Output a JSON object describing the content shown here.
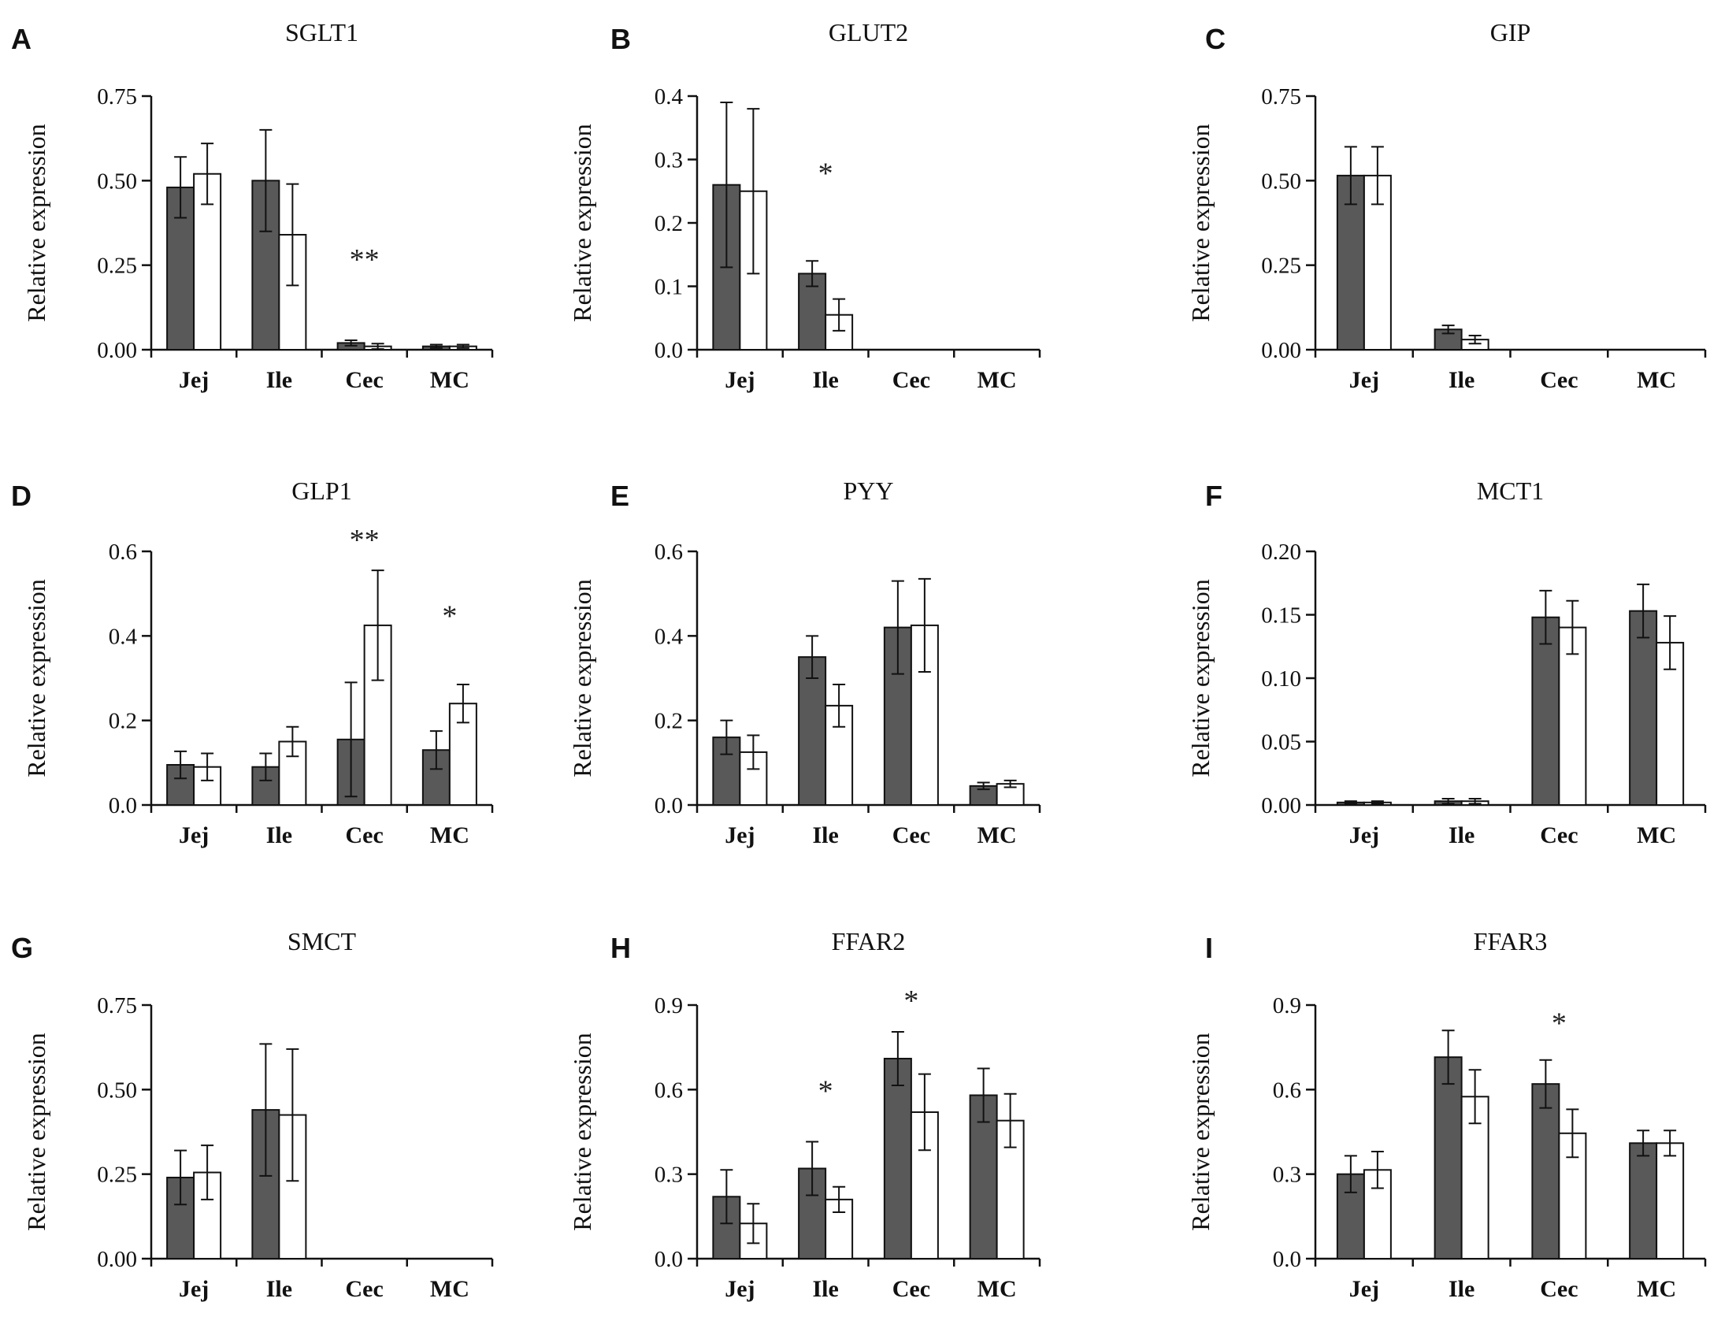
{
  "colors": {
    "series_dark": "#595959",
    "series_light": "#ffffff",
    "stroke": "#111111"
  },
  "chart_data": [
    {
      "panel": "A",
      "title": "SGLT1",
      "type": "bar",
      "ylabel": "Relative expression",
      "categories": [
        "Jej",
        "Ile",
        "Cec",
        "MC"
      ],
      "ylim": [
        0,
        0.75
      ],
      "yticks": [
        "0.00",
        "0.25",
        "0.50",
        "0.75"
      ],
      "series": [
        {
          "name": "dark",
          "values": [
            0.48,
            0.5,
            0.02,
            0.01
          ],
          "errors": [
            0.09,
            0.15,
            0.008,
            0.005
          ]
        },
        {
          "name": "white",
          "values": [
            0.52,
            0.34,
            0.01,
            0.01
          ],
          "errors": [
            0.09,
            0.15,
            0.008,
            0.005
          ]
        }
      ],
      "annotations": [
        {
          "category": 2,
          "text": "**",
          "y": 0.27
        }
      ]
    },
    {
      "panel": "B",
      "title": "GLUT2",
      "type": "bar",
      "ylabel": "Relative expression",
      "categories": [
        "Jej",
        "Ile",
        "Cec",
        "MC"
      ],
      "ylim": [
        0,
        0.4
      ],
      "yticks": [
        "0.0",
        "0.1",
        "0.2",
        "0.3",
        "0.4"
      ],
      "series": [
        {
          "name": "dark",
          "values": [
            0.26,
            0.12,
            0,
            0
          ],
          "errors": [
            0.13,
            0.02,
            0,
            0
          ]
        },
        {
          "name": "white",
          "values": [
            0.25,
            0.055,
            0,
            0
          ],
          "errors": [
            0.13,
            0.025,
            0,
            0
          ]
        }
      ],
      "annotations": [
        {
          "category": 1,
          "text": "*",
          "y": 0.28
        }
      ]
    },
    {
      "panel": "C",
      "title": "GIP",
      "type": "bar",
      "ylabel": "Relative expression",
      "categories": [
        "Jej",
        "Ile",
        "Cec",
        "MC"
      ],
      "ylim": [
        0,
        0.75
      ],
      "yticks": [
        "0.00",
        "0.25",
        "0.50",
        "0.75"
      ],
      "series": [
        {
          "name": "dark",
          "values": [
            0.515,
            0.06,
            0,
            0
          ],
          "errors": [
            0.085,
            0.012,
            0,
            0
          ]
        },
        {
          "name": "white",
          "values": [
            0.515,
            0.03,
            0,
            0
          ],
          "errors": [
            0.085,
            0.012,
            0,
            0
          ]
        }
      ],
      "annotations": []
    },
    {
      "panel": "D",
      "title": "GLP1",
      "type": "bar",
      "ylabel": "Relative expression",
      "categories": [
        "Jej",
        "Ile",
        "Cec",
        "MC"
      ],
      "ylim": [
        0,
        0.6
      ],
      "yticks": [
        "0.0",
        "0.2",
        "0.4",
        "0.6"
      ],
      "series": [
        {
          "name": "dark",
          "values": [
            0.095,
            0.09,
            0.155,
            0.13
          ],
          "errors": [
            0.032,
            0.032,
            0.135,
            0.045
          ]
        },
        {
          "name": "white",
          "values": [
            0.09,
            0.15,
            0.425,
            0.24
          ],
          "errors": [
            0.032,
            0.035,
            0.13,
            0.045
          ]
        }
      ],
      "annotations": [
        {
          "category": 2,
          "text": "**",
          "y": 0.63
        },
        {
          "category": 3,
          "text": "*",
          "y": 0.45
        }
      ]
    },
    {
      "panel": "E",
      "title": "PYY",
      "type": "bar",
      "ylabel": "Relative expression",
      "categories": [
        "Jej",
        "Ile",
        "Cec",
        "MC"
      ],
      "ylim": [
        0,
        0.6
      ],
      "yticks": [
        "0.0",
        "0.2",
        "0.4",
        "0.6"
      ],
      "series": [
        {
          "name": "dark",
          "values": [
            0.16,
            0.35,
            0.42,
            0.045
          ],
          "errors": [
            0.04,
            0.05,
            0.11,
            0.008
          ]
        },
        {
          "name": "white",
          "values": [
            0.125,
            0.235,
            0.425,
            0.05
          ],
          "errors": [
            0.04,
            0.05,
            0.11,
            0.008
          ]
        }
      ],
      "annotations": []
    },
    {
      "panel": "F",
      "title": "MCT1",
      "type": "bar",
      "ylabel": "Relative expression",
      "categories": [
        "Jej",
        "Ile",
        "Cec",
        "MC"
      ],
      "ylim": [
        0,
        0.2
      ],
      "yticks": [
        "0.00",
        "0.05",
        "0.10",
        "0.15",
        "0.20"
      ],
      "series": [
        {
          "name": "dark",
          "values": [
            0.002,
            0.003,
            0.148,
            0.153
          ],
          "errors": [
            0.001,
            0.002,
            0.021,
            0.021
          ]
        },
        {
          "name": "white",
          "values": [
            0.002,
            0.003,
            0.14,
            0.128
          ],
          "errors": [
            0.001,
            0.002,
            0.021,
            0.021
          ]
        }
      ],
      "annotations": []
    },
    {
      "panel": "G",
      "title": "SMCT",
      "type": "bar",
      "ylabel": "Relative expression",
      "categories": [
        "Jej",
        "Ile",
        "Cec",
        "MC"
      ],
      "ylim": [
        0,
        0.75
      ],
      "yticks": [
        "0.00",
        "0.25",
        "0.50",
        "0.75"
      ],
      "series": [
        {
          "name": "dark",
          "values": [
            0.24,
            0.44,
            0,
            0
          ],
          "errors": [
            0.08,
            0.195,
            0,
            0
          ]
        },
        {
          "name": "white",
          "values": [
            0.255,
            0.425,
            0,
            0
          ],
          "errors": [
            0.08,
            0.195,
            0,
            0
          ]
        }
      ],
      "annotations": []
    },
    {
      "panel": "H",
      "title": "FFAR2",
      "type": "bar",
      "ylabel": "Relative expression",
      "categories": [
        "Jej",
        "Ile",
        "Cec",
        "MC"
      ],
      "ylim": [
        0,
        0.9
      ],
      "yticks": [
        "0.0",
        "0.3",
        "0.6",
        "0.9"
      ],
      "series": [
        {
          "name": "dark",
          "values": [
            0.22,
            0.32,
            0.71,
            0.58
          ],
          "errors": [
            0.095,
            0.095,
            0.095,
            0.095
          ]
        },
        {
          "name": "white",
          "values": [
            0.125,
            0.21,
            0.52,
            0.49
          ],
          "errors": [
            0.07,
            0.045,
            0.135,
            0.095
          ]
        }
      ],
      "annotations": [
        {
          "category": 1,
          "text": "*",
          "y": 0.6
        },
        {
          "category": 2,
          "text": "*",
          "y": 0.92
        }
      ]
    },
    {
      "panel": "I",
      "title": "FFAR3",
      "type": "bar",
      "ylabel": "Relative expression",
      "categories": [
        "Jej",
        "Ile",
        "Cec",
        "MC"
      ],
      "ylim": [
        0,
        0.9
      ],
      "yticks": [
        "0.0",
        "0.3",
        "0.6",
        "0.9"
      ],
      "series": [
        {
          "name": "dark",
          "values": [
            0.3,
            0.715,
            0.62,
            0.41
          ],
          "errors": [
            0.065,
            0.095,
            0.085,
            0.045
          ]
        },
        {
          "name": "white",
          "values": [
            0.315,
            0.575,
            0.445,
            0.41
          ],
          "errors": [
            0.065,
            0.095,
            0.085,
            0.045
          ]
        }
      ],
      "annotations": [
        {
          "category": 2,
          "text": "*",
          "y": 0.84
        }
      ]
    }
  ]
}
